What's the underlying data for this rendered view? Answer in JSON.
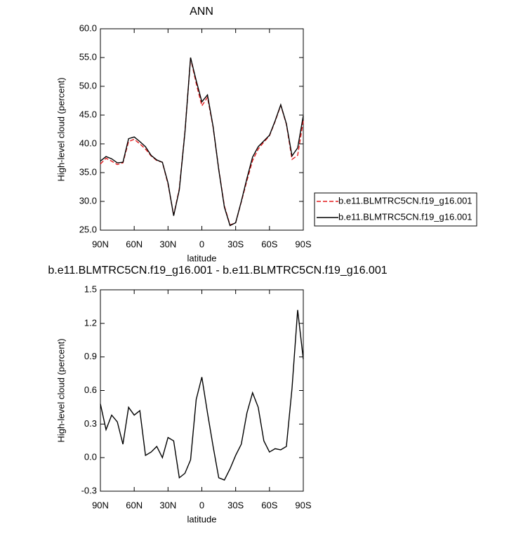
{
  "chart_data": [
    {
      "type": "line",
      "title": "ANN",
      "xlabel": "latitude",
      "ylabel": "High-level cloud (percent)",
      "x": [
        90,
        85,
        80,
        75,
        70,
        65,
        60,
        55,
        50,
        45,
        40,
        35,
        30,
        25,
        20,
        15,
        10,
        5,
        0,
        -5,
        -10,
        -15,
        -20,
        -25,
        -30,
        -35,
        -40,
        -45,
        -50,
        -55,
        -60,
        -65,
        -70,
        -75,
        -80,
        -85,
        -90
      ],
      "xlim": [
        90,
        -90
      ],
      "xticks": [
        {
          "value": 90,
          "label": "90N"
        },
        {
          "value": 60,
          "label": "60N"
        },
        {
          "value": 30,
          "label": "30N"
        },
        0,
        {
          "value": -30,
          "label": "30S"
        },
        {
          "value": -60,
          "label": "60S"
        },
        {
          "value": -90,
          "label": "90S"
        }
      ],
      "ylim": [
        25,
        60
      ],
      "yticks": [
        {
          "value": 25,
          "label": "25.0"
        },
        {
          "value": 30,
          "label": "30.0"
        },
        {
          "value": 35,
          "label": "35.0"
        },
        {
          "value": 40,
          "label": "40.0"
        },
        {
          "value": 45,
          "label": "45.0"
        },
        {
          "value": 50,
          "label": "50.0"
        },
        {
          "value": 55,
          "label": "55.0"
        },
        {
          "value": 60,
          "label": "60.0"
        }
      ],
      "legend_position": "right",
      "series": [
        {
          "name": "b.e11.BLMTRC5CN.f19_g16.001",
          "color": "#e41a1c",
          "line_style": "dashed",
          "values": [
            36.5,
            37.5,
            37.0,
            36.4,
            36.7,
            40.4,
            40.8,
            40.0,
            39.1,
            37.9,
            37.1,
            36.8,
            33.0,
            27.6,
            32.2,
            42.1,
            54.9,
            50.5,
            46.6,
            48.1,
            42.9,
            35.6,
            29.2,
            25.9,
            26.3,
            29.9,
            33.6,
            37.1,
            39.1,
            40.3,
            41.4,
            43.9,
            46.7,
            43.4,
            37.3,
            38.0,
            44.0
          ]
        },
        {
          "name": "b.e11.BLMTRC5CN.f19_g16.001",
          "color": "#000000",
          "line_style": "solid",
          "values": [
            37.0,
            37.8,
            37.4,
            36.7,
            36.8,
            40.9,
            41.2,
            40.4,
            39.5,
            38.0,
            37.2,
            36.8,
            33.2,
            27.5,
            32.0,
            42.0,
            55.0,
            51.0,
            47.3,
            48.5,
            43.0,
            35.5,
            29.0,
            25.8,
            26.3,
            30.0,
            34.0,
            37.7,
            39.5,
            40.5,
            41.5,
            44.0,
            46.8,
            43.5,
            37.9,
            39.3,
            44.9
          ]
        }
      ]
    },
    {
      "type": "line",
      "title": "b.e11.BLMTRC5CN.f19_g16.001 - b.e11.BLMTRC5CN.f19_g16.001",
      "xlabel": "latitude",
      "ylabel": "High-level cloud (percent)",
      "x": [
        90,
        85,
        80,
        75,
        70,
        65,
        60,
        55,
        50,
        45,
        40,
        35,
        30,
        25,
        20,
        15,
        10,
        5,
        0,
        -5,
        -10,
        -15,
        -20,
        -25,
        -30,
        -35,
        -40,
        -45,
        -50,
        -55,
        -60,
        -65,
        -70,
        -75,
        -80,
        -85,
        -90
      ],
      "xlim": [
        90,
        -90
      ],
      "xticks": [
        {
          "value": 90,
          "label": "90N"
        },
        {
          "value": 60,
          "label": "60N"
        },
        {
          "value": 30,
          "label": "30N"
        },
        0,
        {
          "value": -30,
          "label": "30S"
        },
        {
          "value": -60,
          "label": "60S"
        },
        {
          "value": -90,
          "label": "90S"
        }
      ],
      "ylim": [
        -0.3,
        1.5
      ],
      "yticks": [
        -0.3,
        {
          "value": 0,
          "label": "0.0"
        },
        0.3,
        0.6,
        0.9,
        1.2,
        1.5
      ],
      "series": [
        {
          "color": "#000000",
          "line_style": "solid",
          "values": [
            0.48,
            0.25,
            0.38,
            0.32,
            0.12,
            0.45,
            0.38,
            0.42,
            0.02,
            0.05,
            0.1,
            0.0,
            0.18,
            0.15,
            -0.18,
            -0.14,
            -0.02,
            0.52,
            0.72,
            0.4,
            0.1,
            -0.18,
            -0.2,
            -0.1,
            0.02,
            0.12,
            0.4,
            0.58,
            0.45,
            0.15,
            0.05,
            0.08,
            0.07,
            0.1,
            0.62,
            1.32,
            0.88
          ]
        }
      ]
    }
  ]
}
